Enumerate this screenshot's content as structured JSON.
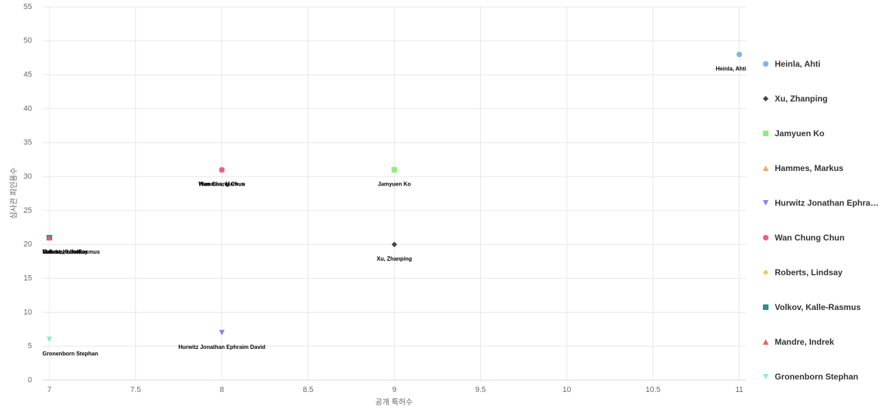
{
  "chart_data": {
    "type": "scatter",
    "x_label": "공개 특허수",
    "y_label": "심사관 피인용수",
    "xlim": [
      6.96,
      11.04
    ],
    "xticks": [
      7,
      7.5,
      8,
      8.5,
      9,
      9.5,
      10,
      10.5,
      11
    ],
    "ylim": [
      0,
      55
    ],
    "yticks": [
      0,
      5,
      10,
      15,
      20,
      25,
      30,
      35,
      40,
      45,
      50,
      55
    ],
    "grid": true,
    "legend": "right",
    "data_labels": true,
    "series": [
      {
        "name": "Heinla, Ahti",
        "color": "#7cb5ec",
        "symbol": "circle",
        "x": [
          11
        ],
        "values": [
          48
        ]
      },
      {
        "name": "Xu, Zhanping",
        "color": "#434348",
        "symbol": "diamond",
        "x": [
          9
        ],
        "values": [
          20
        ]
      },
      {
        "name": "Jamyuen Ko",
        "color": "#90ed7d",
        "symbol": "square",
        "x": [
          9
        ],
        "values": [
          31
        ]
      },
      {
        "name": "Hammes, Markus",
        "color": "#f7a35c",
        "symbol": "triangle",
        "x": [
          8
        ],
        "values": [
          31
        ]
      },
      {
        "name": "Hurwitz Jonathan Ephraim David",
        "color": "#8085e9",
        "symbol": "triangle-down",
        "x": [
          8
        ],
        "values": [
          7
        ]
      },
      {
        "name": "Wan Chung Chun",
        "color": "#f15c80",
        "symbol": "circle",
        "x": [
          8
        ],
        "values": [
          31
        ]
      },
      {
        "name": "Roberts, Lindsay",
        "color": "#e4d354",
        "symbol": "diamond",
        "x": [
          7
        ],
        "values": [
          21
        ]
      },
      {
        "name": "Volkov, Kalle-Rasmus",
        "color": "#2b908f",
        "symbol": "square",
        "x": [
          7
        ],
        "values": [
          21
        ]
      },
      {
        "name": "Mandre, Indrek",
        "color": "#f45b5b",
        "symbol": "triangle",
        "x": [
          7
        ],
        "values": [
          21
        ]
      },
      {
        "name": "Gronenborn Stephan",
        "color": "#91e8e1",
        "symbol": "triangle-down",
        "x": [
          7
        ],
        "values": [
          6
        ]
      }
    ]
  }
}
